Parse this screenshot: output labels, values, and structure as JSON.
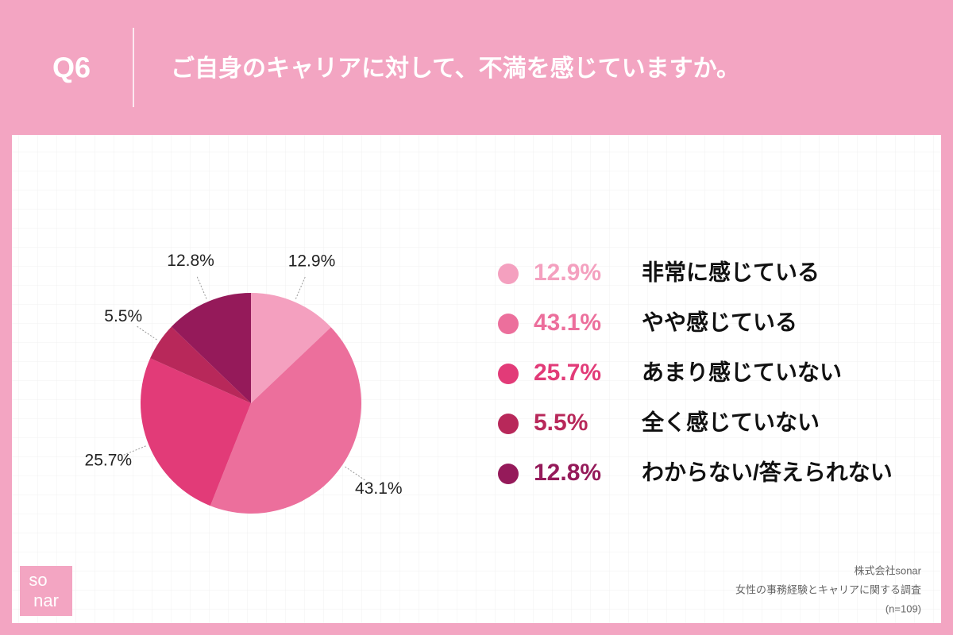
{
  "header": {
    "number": "Q6",
    "title": "ご自身のキャリアに対して、不満を感じていますか。"
  },
  "chart_data": {
    "type": "pie",
    "categories": [
      "非常に感じている",
      "やや感じている",
      "あまり感じていない",
      "全く感じていない",
      "わからない/答えられない"
    ],
    "values": [
      12.9,
      43.1,
      25.7,
      5.5,
      12.8
    ],
    "value_labels": [
      "12.9%",
      "43.1%",
      "25.7%",
      "5.5%",
      "12.8%"
    ],
    "colors": [
      "#f4a0bf",
      "#ec6f9c",
      "#e23b78",
      "#b8285a",
      "#951a5a"
    ]
  },
  "footer": {
    "logo": [
      "so",
      "nar"
    ],
    "lines": [
      "株式会社sonar",
      "女性の事務経験とキャリアに関する調査",
      "(n=109)"
    ]
  }
}
